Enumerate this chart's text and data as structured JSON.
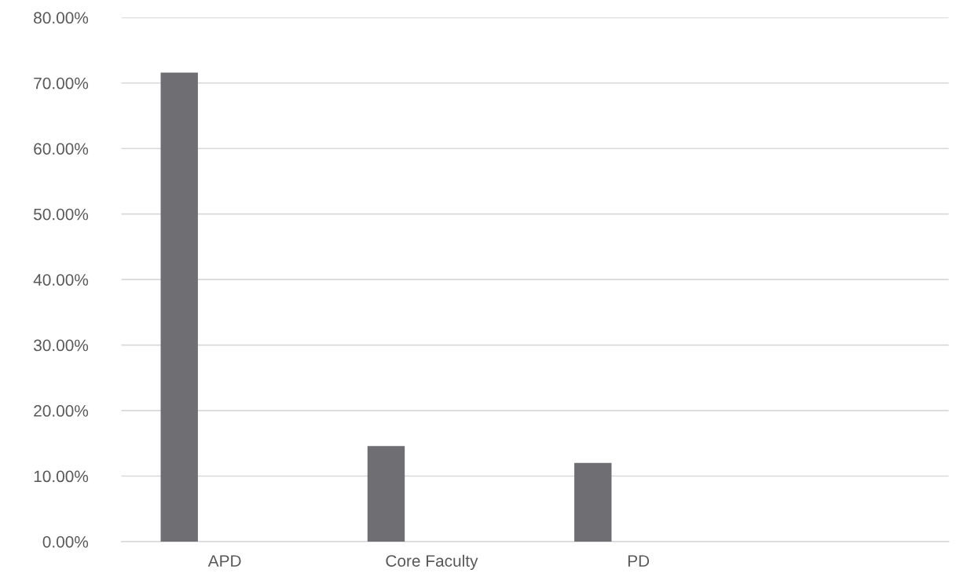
{
  "chart_data": {
    "type": "bar",
    "categories": [
      "APD",
      "Core Faculty",
      "PD",
      null
    ],
    "series": [
      {
        "color": "#6f6e72",
        "values": [
          71.6,
          14.6,
          12.0,
          null
        ]
      }
    ],
    "ylim": [
      0,
      80
    ],
    "yticks": [
      {
        "value": 0,
        "label": "0.00%"
      },
      {
        "value": 10,
        "label": "10.00%"
      },
      {
        "value": 20,
        "label": "20.00%"
      },
      {
        "value": 30,
        "label": "30.00%"
      },
      {
        "value": 40,
        "label": "40.00%"
      },
      {
        "value": 50,
        "label": "50.00%"
      },
      {
        "value": 60,
        "label": "60.00%"
      },
      {
        "value": 70,
        "label": "70.00%"
      },
      {
        "value": 80,
        "label": "80.00%"
      }
    ],
    "grid": "y"
  }
}
